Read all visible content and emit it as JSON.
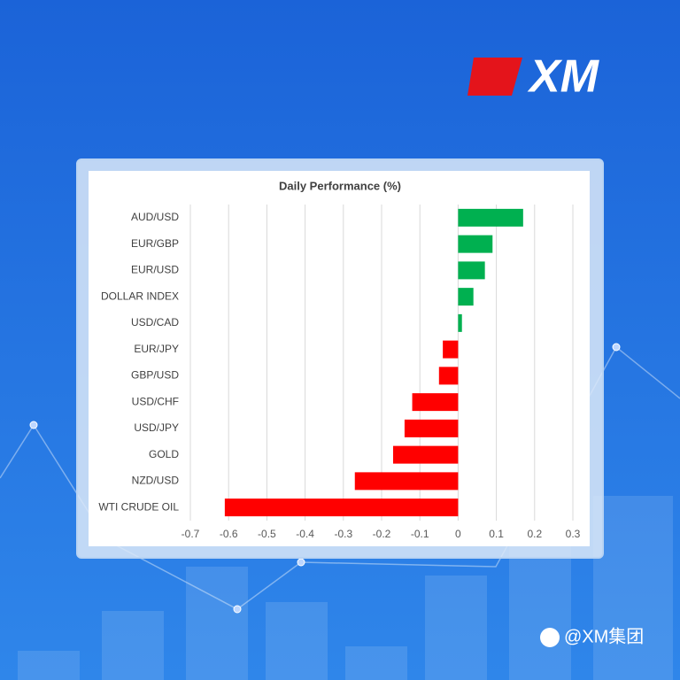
{
  "logo": "XM",
  "watermark": "@XM集团",
  "chart_data": {
    "type": "hbar",
    "title": "Daily Performance (%)",
    "categories": [
      "AUD/USD",
      "EUR/GBP",
      "EUR/USD",
      "DOLLAR INDEX",
      "USD/CAD",
      "EUR/JPY",
      "GBP/USD",
      "USD/CHF",
      "USD/JPY",
      "GOLD",
      "NZD/USD",
      "WTI CRUDE OIL"
    ],
    "values": [
      0.17,
      0.09,
      0.07,
      0.04,
      0.01,
      -0.04,
      -0.05,
      -0.12,
      -0.14,
      -0.17,
      -0.27,
      -0.61
    ],
    "positive_color": "#00b050",
    "negative_color": "#ff0000",
    "xlim": [
      -0.7,
      0.3
    ],
    "xticks": [
      -0.7,
      -0.6,
      -0.5,
      -0.4,
      -0.3,
      -0.2,
      -0.1,
      0,
      0.1,
      0.2,
      0.3
    ],
    "grid": true
  }
}
